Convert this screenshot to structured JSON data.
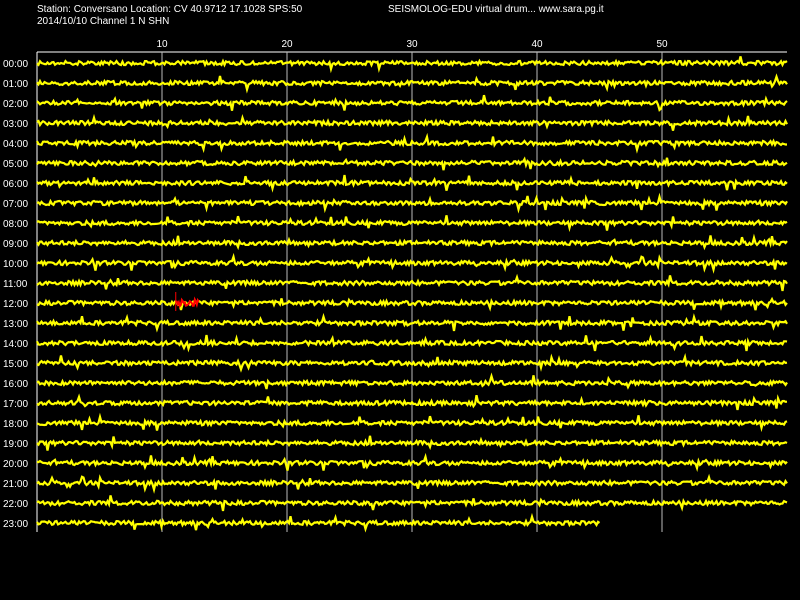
{
  "header": {
    "station_line": "Station: Conversano Location: CV 40.9712 17.1028 SPS:50",
    "date_line": "2014/10/10  Channel 1 N SHN",
    "site_line": "SEISMOLOG-EDU virtual drum... www.sara.pg.it"
  },
  "drum": {
    "minute_ticks": [
      "10",
      "20",
      "30",
      "40",
      "50"
    ],
    "hours": [
      "00:00",
      "01:00",
      "02:00",
      "03:00",
      "04:00",
      "05:00",
      "06:00",
      "07:00",
      "08:00",
      "09:00",
      "10:00",
      "11:00",
      "12:00",
      "13:00",
      "14:00",
      "15:00",
      "16:00",
      "17:00",
      "18:00",
      "19:00",
      "20:00",
      "21:00",
      "22:00",
      "23:00"
    ],
    "minutes_per_row": 60,
    "last_row_minutes": 45,
    "event": {
      "hour_index": 12,
      "start_minute": 11.1,
      "end_minute": 13.0
    }
  },
  "colors": {
    "background": "#000000",
    "trace": "#ffff00",
    "event": "#ff0000",
    "grid": "#ffffff",
    "text": "#ffffff"
  }
}
